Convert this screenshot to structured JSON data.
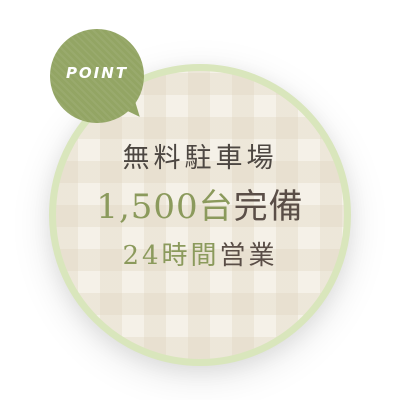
{
  "badge": {
    "tag": "POINT",
    "line1": "無料駐車場",
    "line2_accent": "1,500台",
    "line2_rest": "完備",
    "line3_accent": "24時間",
    "line3_rest": "営業"
  },
  "colors": {
    "bubble_green": "#93a564",
    "ring_green": "#d9e6bc",
    "accent_text": "#8b9a5c",
    "body_text": "#5a4e47",
    "badge_fill": "#f5f1e8"
  }
}
